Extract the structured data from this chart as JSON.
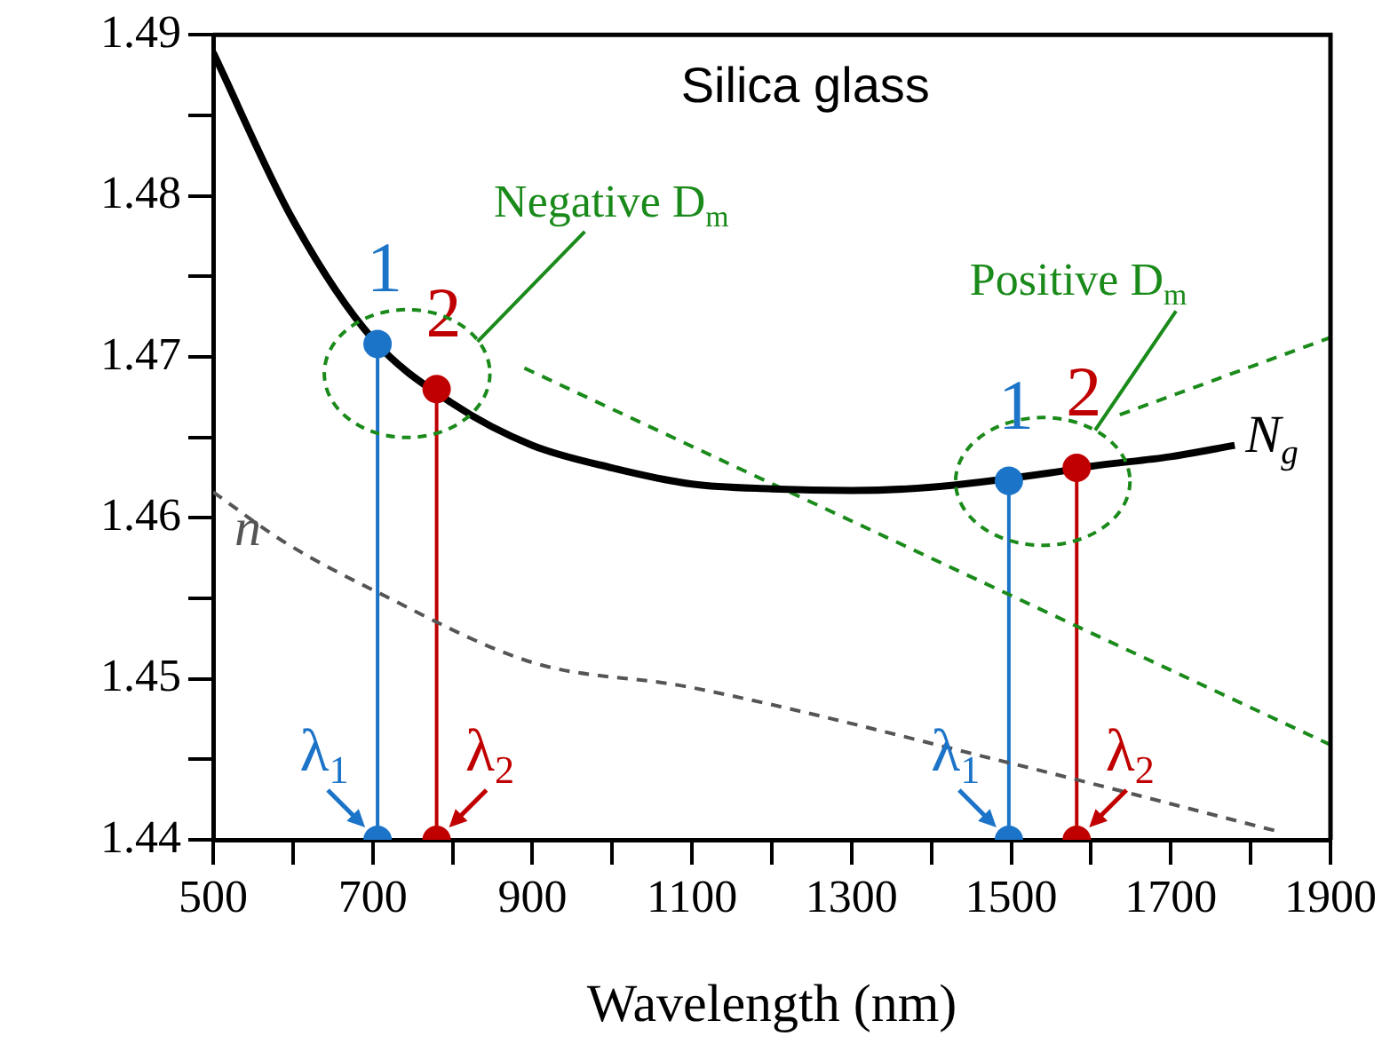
{
  "chart_data": {
    "type": "line",
    "title": "Silica glass",
    "xlabel": "Wavelength (nm)",
    "xlim": [
      500,
      1900
    ],
    "ylim": [
      1.44,
      1.49
    ],
    "xticks": [
      500,
      {
        "value": 600,
        "label": null
      },
      700,
      {
        "value": 800,
        "label": null
      },
      900,
      {
        "value": 1000,
        "label": null
      },
      1100,
      {
        "value": 1200,
        "label": null
      },
      1300,
      {
        "value": 1400,
        "label": null
      },
      1500,
      {
        "value": 1600,
        "label": null
      },
      1700,
      {
        "value": 1800,
        "label": null
      },
      1900
    ],
    "yticks": [
      1.44,
      {
        "value": 1.445,
        "label": null
      },
      1.45,
      {
        "value": 1.455,
        "label": null
      },
      1.46,
      {
        "value": 1.465,
        "label": null
      },
      1.47,
      {
        "value": 1.475,
        "label": null
      },
      1.48,
      {
        "value": 1.485,
        "label": null
      },
      1.49
    ],
    "grid": false,
    "legend": false,
    "annotations": [
      "Negative D$_{m}$",
      "Positive D$_{m}$",
      {
        "text": "1",
        "x": 706,
        "y": 1.4708
      },
      {
        "text": "2",
        "x": 780,
        "y": 1.468
      },
      {
        "text": "1",
        "x": 1497,
        "y": 1.4623
      },
      {
        "text": "2",
        "x": 1582,
        "y": 1.4631
      },
      {
        "text": "λ$_{1}$",
        "x": 706,
        "y": 1.44
      },
      {
        "text": "λ$_{2}$",
        "x": 780,
        "y": 1.44
      },
      {
        "text": "λ$_{1}$",
        "x": 1497,
        "y": 1.44
      },
      {
        "text": "λ$_{2}$",
        "x": 1582,
        "y": 1.44
      }
    ],
    "series": [
      {
        "name": "N$_{g}$",
        "color": "#000000",
        "marker": "none",
        "line_style": "solid",
        "x": [
          500,
          600,
          700,
          800,
          900,
          1000,
          1100,
          1200,
          1300,
          1400,
          1550,
          1600,
          1700,
          1780
        ],
        "values": [
          1.4889,
          1.4785,
          1.4711,
          1.4671,
          1.4645,
          1.4631,
          1.4621,
          1.4618,
          1.4617,
          1.4619,
          1.4628,
          1.4632,
          1.4638,
          1.4645
        ]
      },
      {
        "name": "n",
        "color": "#555555",
        "marker": "none",
        "line_style": "dashed",
        "x": [
          500,
          589,
          705,
          901,
          1095,
          1496,
          1836
        ],
        "values": [
          1.4616,
          1.4585,
          1.4554,
          1.451,
          1.4495,
          1.4448,
          1.4405
        ]
      },
      {
        "color": "#1a8a1a",
        "marker": "none",
        "line_style": "dashed",
        "x": [
          890,
          1900
        ],
        "values": [
          1.4693,
          1.4459
        ]
      },
      {
        "color": "#1a8a1a",
        "marker": "none",
        "line_style": "dashed",
        "x": [
          1636,
          1900
        ],
        "values": [
          1.4664,
          1.4712
        ]
      },
      {
        "color": "#1c74c8",
        "marker": "none",
        "line_style": "solid",
        "x": [
          706,
          706
        ],
        "values": [
          1.4708,
          1.44
        ]
      },
      {
        "color": "#c00000",
        "marker": "none",
        "line_style": "solid",
        "x": [
          780,
          780
        ],
        "values": [
          1.468,
          1.44
        ]
      },
      {
        "color": "#1c74c8",
        "marker": "none",
        "line_style": "solid",
        "x": [
          1497,
          1497
        ],
        "values": [
          1.4623,
          1.44
        ]
      },
      {
        "color": "#c00000",
        "marker": "none",
        "line_style": "solid",
        "x": [
          1582,
          1582
        ],
        "values": [
          1.4631,
          1.44
        ]
      },
      {
        "type": "scatter",
        "color": "#1c74c8",
        "marker": "circle",
        "x": [
          706,
          1497
        ],
        "values": [
          1.4708,
          1.4623
        ]
      },
      {
        "type": "scatter",
        "color": "#c00000",
        "marker": "circle",
        "x": [
          780,
          1582
        ],
        "values": [
          1.468,
          1.4631
        ]
      },
      {
        "type": "scatter",
        "color": "#1c74c8",
        "marker": "circle",
        "x": [
          706,
          1497
        ],
        "values": [
          1.44,
          1.44
        ]
      },
      {
        "type": "scatter",
        "color": "#c00000",
        "marker": "circle",
        "x": [
          780,
          1582
        ],
        "values": [
          1.44,
          1.44
        ]
      }
    ]
  }
}
